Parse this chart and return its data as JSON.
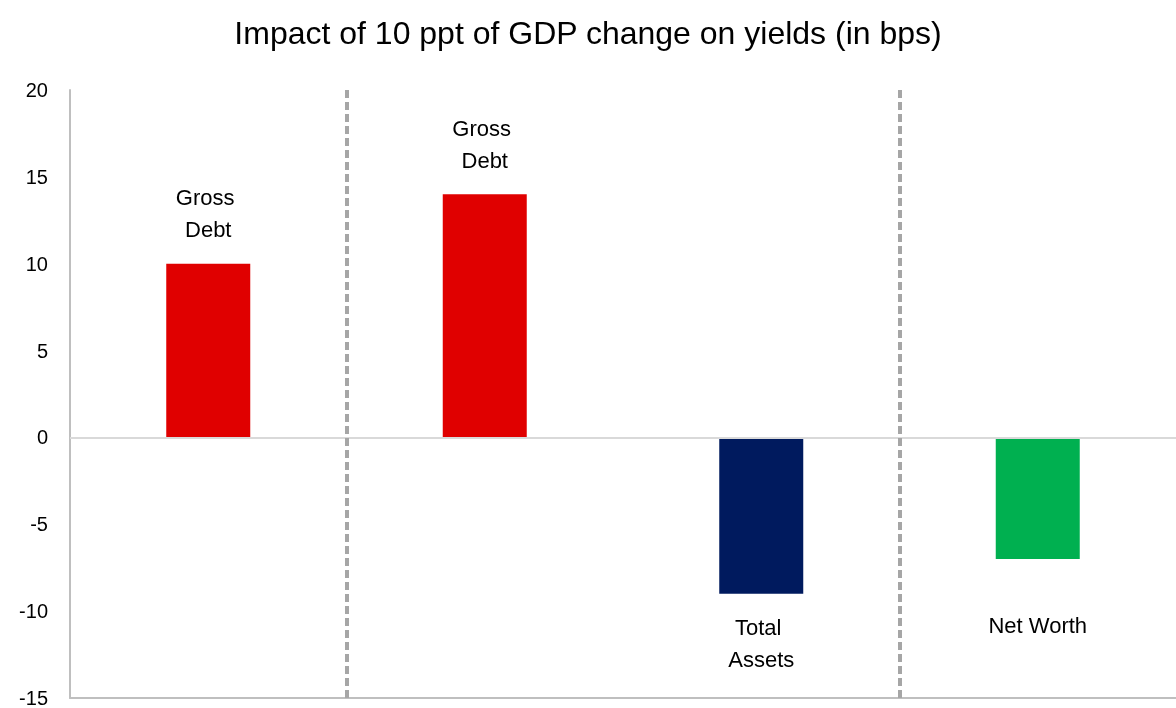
{
  "chart_data": {
    "type": "bar",
    "title": "Impact of 10 ppt of GDP change on yields (in bps)",
    "categories": [
      "Gross Debt",
      "Gross Debt",
      "Total Assets",
      "Net Worth"
    ],
    "values": [
      10,
      14,
      -9,
      -7
    ],
    "colors": [
      "#e00000",
      "#e00000",
      "#001a5e",
      "#00b050"
    ],
    "ylim": [
      -15,
      20
    ],
    "yticks": [
      -15,
      -10,
      -5,
      0,
      5,
      10,
      15,
      20
    ],
    "tick_labels": "y",
    "grid": false,
    "ref_lines": [
      {
        "axis": "y",
        "value": 0,
        "color": "#d9d9d9",
        "line_style": "solid"
      }
    ]
  }
}
